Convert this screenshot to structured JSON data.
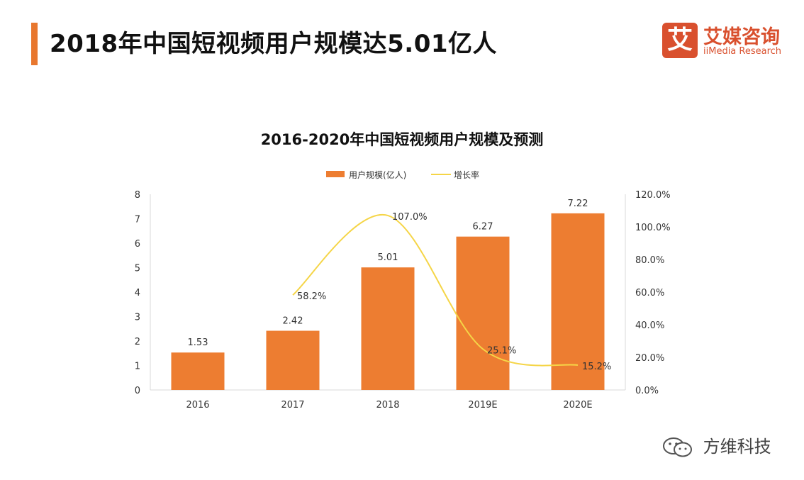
{
  "header": {
    "title": "2018年中国短视频用户规模达5.01亿人",
    "accent_color": "#E8772E"
  },
  "logo": {
    "mark": "艾",
    "name_cn": "艾媒咨询",
    "name_en": "iiMedia Research",
    "color": "#D9502E"
  },
  "chart_data": {
    "type": "bar",
    "title": "2016-2020年中国短视频用户规模及预测",
    "categories": [
      "2016",
      "2017",
      "2018",
      "2019E",
      "2020E"
    ],
    "series": [
      {
        "name": "用户规模(亿人)",
        "kind": "bar",
        "axis": "left",
        "color": "#ED7D31",
        "values": [
          1.53,
          2.42,
          5.01,
          6.27,
          7.22
        ],
        "labels": [
          "1.53",
          "2.42",
          "5.01",
          "6.27",
          "7.22"
        ]
      },
      {
        "name": "增长率",
        "kind": "line",
        "axis": "right",
        "color": "#F5D547",
        "values": [
          null,
          58.2,
          107.0,
          25.1,
          15.2
        ],
        "labels": [
          "",
          "58.2%",
          "107.0%",
          "25.1%",
          "15.2%"
        ]
      }
    ],
    "y_left": {
      "min": 0,
      "max": 8,
      "ticks": [
        "0",
        "1",
        "2",
        "3",
        "4",
        "5",
        "6",
        "7",
        "8"
      ]
    },
    "y_right": {
      "min": 0,
      "max": 120,
      "ticks": [
        "0.0%",
        "20.0%",
        "40.0%",
        "60.0%",
        "80.0%",
        "100.0%",
        "120.0%"
      ]
    },
    "legend_position": "top",
    "grid": false
  },
  "watermark": {
    "text": "方维科技",
    "icon": "wechat-icon"
  }
}
